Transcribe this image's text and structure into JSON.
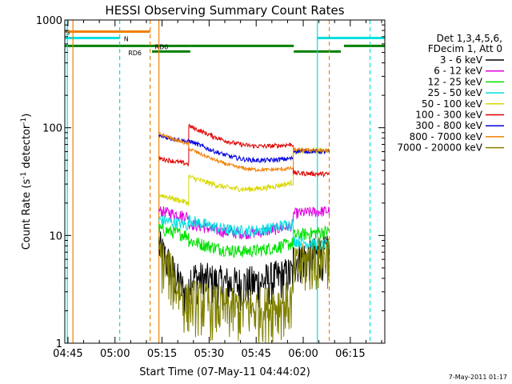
{
  "chart_data": {
    "type": "line",
    "title": "HESSI Observing Summary Count Rates",
    "xlabel": "Start Time (07-May-11 04:44:02)",
    "ylabel_main": "Count Rate (s",
    "ylabel_sup1": "-1",
    "ylabel_mid": " detector",
    "ylabel_sup2": "-1",
    "ylabel_end": ")",
    "y_scale": "log",
    "ylim": [
      1,
      1000
    ],
    "xlim_minutes": [
      0,
      102
    ],
    "x_ticks": [
      {
        "label": "04:45",
        "t": 1
      },
      {
        "label": "05:00",
        "t": 16
      },
      {
        "label": "05:15",
        "t": 31
      },
      {
        "label": "05:30",
        "t": 46
      },
      {
        "label": "05:45",
        "t": 61
      },
      {
        "label": "06:00",
        "t": 76
      },
      {
        "label": "06:15",
        "t": 91
      }
    ],
    "y_ticks": [
      {
        "label": "1",
        "v": 1
      },
      {
        "label": "10",
        "v": 10
      },
      {
        "label": "100",
        "v": 100
      },
      {
        "label": "1000",
        "v": 1000
      }
    ],
    "legend_header": [
      "Det 1,3,4,5,6,",
      "FDecim 1, Att 0"
    ],
    "legend_placement": "right",
    "footer": "7-May-2011 01:17",
    "series": [
      {
        "name": "3 - 6 keV",
        "color": "#000000",
        "start": [
          8.0,
          2.5
        ],
        "dip": [
          4.2,
          4.5
        ],
        "end": [
          6.0,
          7.0
        ],
        "noise": 0.45
      },
      {
        "name": "6 - 12 keV",
        "color": "#e000e0",
        "start": [
          17.0,
          15.0
        ],
        "dip": [
          13.0,
          12.5
        ],
        "end": [
          16.0,
          17.0
        ],
        "noise": 0.12
      },
      {
        "name": "12 - 25 keV",
        "color": "#00e000",
        "start": [
          11.5,
          10.0
        ],
        "dip": [
          9.0,
          8.5
        ],
        "end": [
          10.0,
          11.0
        ],
        "noise": 0.14
      },
      {
        "name": "25 - 50 keV",
        "color": "#00e0e0",
        "start": [
          14.0,
          12.5
        ],
        "dip": [
          14.0,
          13.0
        ],
        "end": [
          9.0,
          8.0
        ],
        "noise": 0.13
      },
      {
        "name": "50 - 100 keV",
        "color": "#d8d800",
        "start": [
          24.0,
          20.0
        ],
        "dip": [
          35.0,
          31.0
        ],
        "end": [
          60.0,
          62.0
        ],
        "noise": 0.06
      },
      {
        "name": "100 - 300 keV",
        "color": "#e00000",
        "start": [
          52.0,
          46.0
        ],
        "dip": [
          104.0,
          70.0
        ],
        "end": [
          38.0,
          37.0
        ],
        "noise": 0.05
      },
      {
        "name": "300 - 800 keV",
        "color": "#0000e0",
        "start": [
          84.0,
          74.0
        ],
        "dip": [
          76.0,
          52.0
        ],
        "end": [
          61.0,
          60.0
        ],
        "noise": 0.05
      },
      {
        "name": "800 - 7000 keV",
        "color": "#f08000",
        "start": [
          88.0,
          70.0
        ],
        "dip": [
          64.0,
          42.0
        ],
        "end": [
          63.0,
          61.0
        ],
        "noise": 0.04
      },
      {
        "name": "7000 - 20000 keV",
        "color": "#808000",
        "start": [
          7.0,
          2.2
        ],
        "dip": [
          2.6,
          2.5
        ],
        "end": [
          5.0,
          7.0
        ],
        "noise": 0.55
      }
    ],
    "segments": {
      "t_start": 30.0,
      "t_break1": 39.5,
      "t_break2": 72.8,
      "t_end": 84.3
    },
    "flags": [
      {
        "label": "S",
        "color": "#f08000",
        "y": 780,
        "spans": [
          [
            0.0,
            27.2
          ]
        ]
      },
      {
        "label": "N",
        "color": "#00e0e0",
        "y": 680,
        "spans": [
          [
            0.0,
            17.5
          ],
          [
            80.5,
            102.0
          ]
        ]
      },
      {
        "label": "RD0",
        "color": "#008000",
        "y": 575,
        "spans": [
          [
            0.0,
            40.0
          ],
          [
            40.0,
            73.0
          ],
          [
            89.0,
            102.0
          ]
        ]
      },
      {
        "label": "RD6",
        "color": "#008000",
        "y": 510,
        "spans": [
          [
            27.8,
            40.0
          ],
          [
            73.0,
            88.0
          ]
        ]
      }
    ],
    "flag_label_pos": [
      {
        "label": "S",
        "t": 0.3,
        "y": 780
      },
      {
        "label": "N",
        "t": 18.8,
        "y": 680
      },
      {
        "label": "RD0",
        "t": 28.7,
        "y": 575
      },
      {
        "label": "RD6",
        "t": 20.2,
        "y": 505
      }
    ],
    "vlines": [
      {
        "t": 0.8,
        "color": "#00e0e0",
        "style": "solid"
      },
      {
        "t": 2.6,
        "color": "#f08000",
        "style": "solid"
      },
      {
        "t": 17.5,
        "color": "#00e0e0",
        "style": "dashed"
      },
      {
        "t": 27.2,
        "color": "#f08000",
        "style": "dashed"
      },
      {
        "t": 30.0,
        "color": "#f08000",
        "style": "solid"
      },
      {
        "t": 80.5,
        "color": "#00e0e0",
        "style": "solid"
      },
      {
        "t": 84.3,
        "color": "#f08000",
        "style": "dashed"
      },
      {
        "t": 97.3,
        "color": "#00e0e0",
        "style": "dashed"
      }
    ]
  }
}
